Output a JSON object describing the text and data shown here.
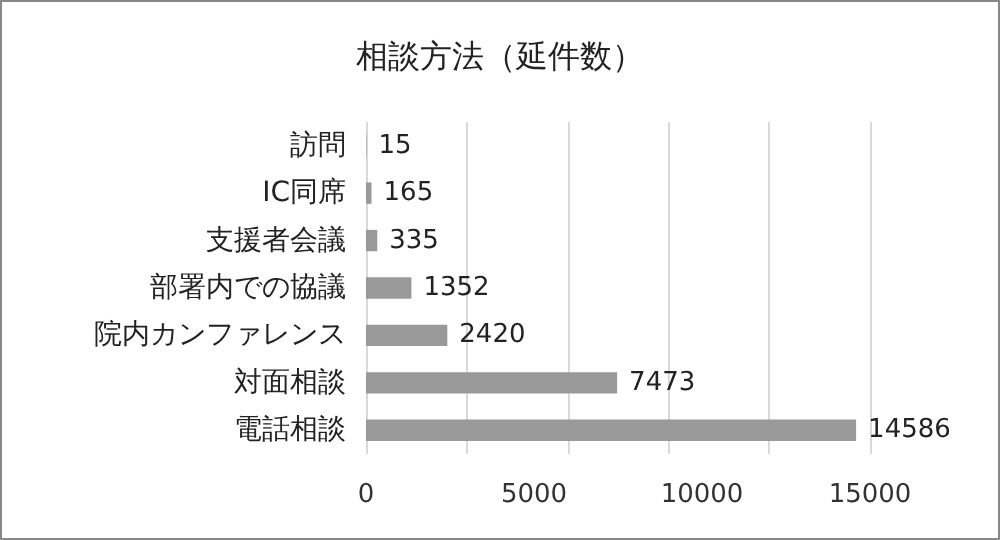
{
  "chart_data": {
    "type": "bar",
    "orientation": "horizontal",
    "title": "相談方法（延件数）",
    "categories": [
      "訪問",
      "IC同席",
      "支援者会議",
      "部署内での協議",
      "院内カンファレンス",
      "対面相談",
      "電話相談"
    ],
    "values": [
      15,
      165,
      335,
      1352,
      2420,
      7473,
      14586
    ],
    "color": "#999999",
    "xlim": [
      0,
      15000
    ],
    "xticks": [
      0,
      5000,
      10000,
      15000
    ],
    "grid": "x",
    "data_labels": true
  }
}
